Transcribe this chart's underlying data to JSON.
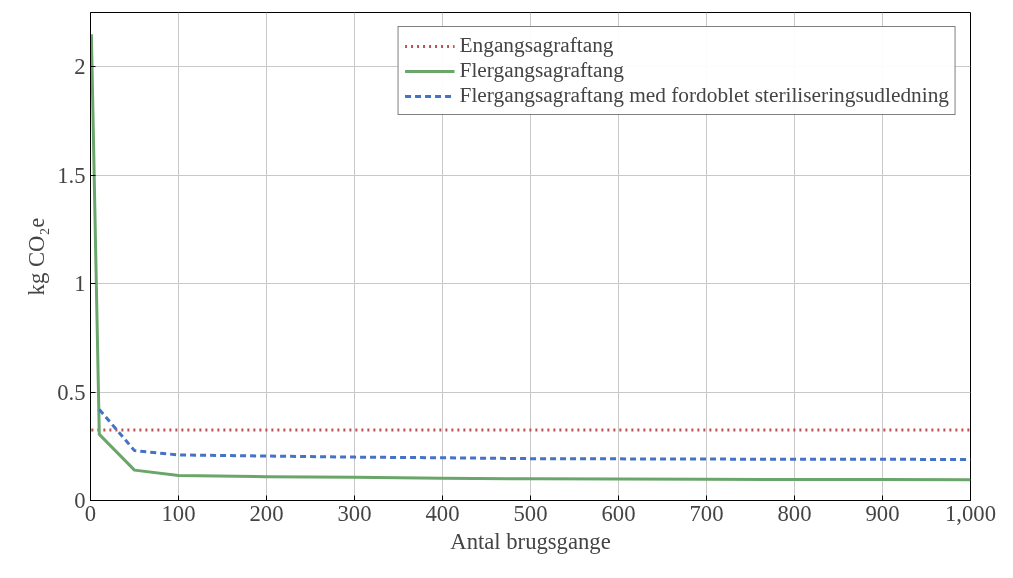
{
  "chart_data": {
    "type": "line",
    "xlabel": "Antal brugsgange",
    "ylabel": "kg CO₂e",
    "xlim": [
      0,
      1000
    ],
    "ylim": [
      0,
      2.25
    ],
    "xticks": [
      0,
      100,
      200,
      300,
      400,
      500,
      600,
      700,
      800,
      900,
      {
        "value": 1000,
        "label": "1,000"
      }
    ],
    "yticks": [
      0,
      0.5,
      1,
      1.5,
      2
    ],
    "grid": true,
    "legend": "top right",
    "series": [
      {
        "name": "Engangsagraftang",
        "color": "#c0504d",
        "line_style": "dotted",
        "x": [
          1,
          1000
        ],
        "values": [
          0.325,
          0.325
        ]
      },
      {
        "name": "Flergangsagraftang",
        "color": "#6aa56a",
        "line_style": "solid",
        "x": [
          1,
          10,
          50,
          100,
          200,
          300,
          400,
          500,
          600,
          700,
          800,
          900,
          1000
        ],
        "values": [
          2.15,
          0.305,
          0.14,
          0.115,
          0.11,
          0.107,
          0.103,
          0.1,
          0.099,
          0.098,
          0.097,
          0.097,
          0.096
        ]
      },
      {
        "name": "Flergangsagraftang med fordoblet steriliseringsudledning",
        "color": "#4472c4",
        "line_style": "dashed",
        "x": [
          10,
          50,
          100,
          200,
          300,
          400,
          500,
          600,
          700,
          800,
          900,
          1000
        ],
        "values": [
          0.42,
          0.23,
          0.21,
          0.205,
          0.2,
          0.197,
          0.193,
          0.192,
          0.191,
          0.19,
          0.19,
          0.189
        ]
      }
    ]
  }
}
